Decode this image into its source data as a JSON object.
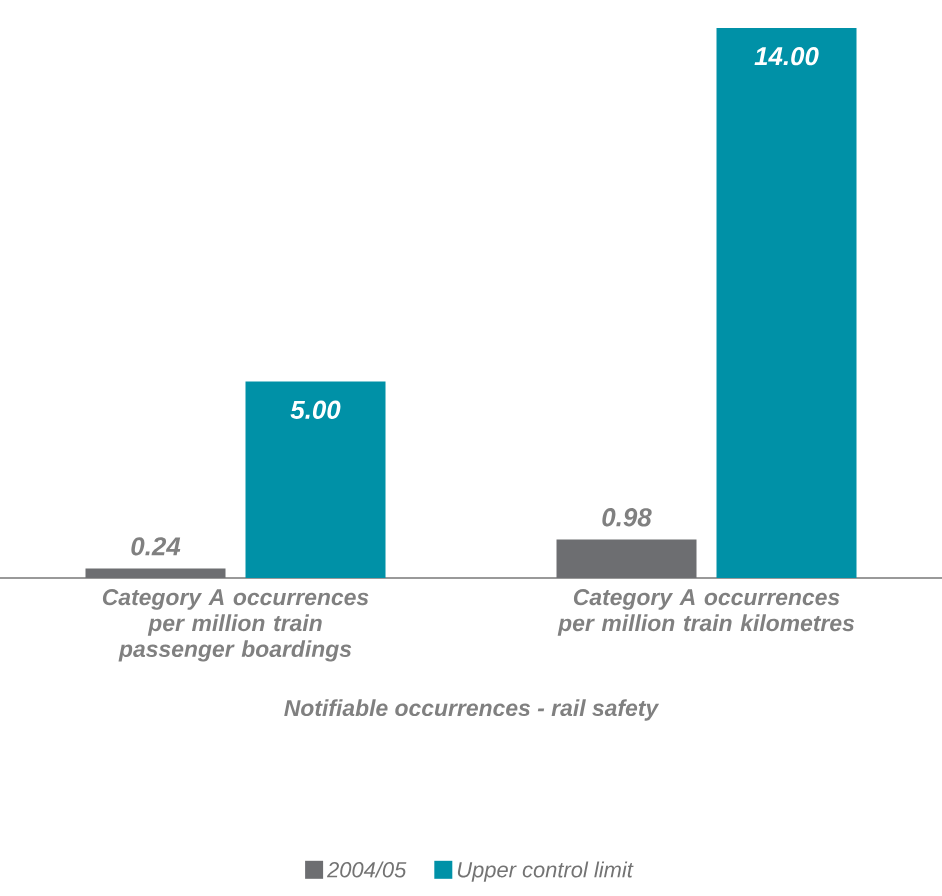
{
  "chart_data": {
    "type": "bar",
    "categories": [
      "Category A occurrences per million train passenger boardings",
      "Category A occurrences per million train kilometres"
    ],
    "xlabel": "Notifiable occurrences - rail safety",
    "series": [
      {
        "name": "2004/05",
        "color": "#6d6e71",
        "values": [
          0.24,
          0.98
        ],
        "value_labels": [
          "0.24",
          "0.98"
        ]
      },
      {
        "name": "Upper control limit",
        "color": "#0091a7",
        "values": [
          5.0,
          14.0
        ],
        "value_labels": [
          "5.00",
          "14.00"
        ]
      }
    ],
    "legend": "bottom"
  }
}
